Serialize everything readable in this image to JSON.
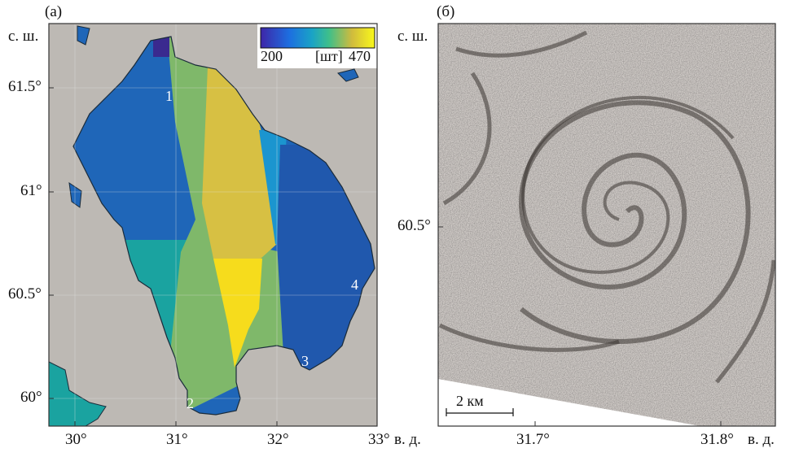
{
  "panel_a": {
    "label": "(a)",
    "lat_unit": "с. ш.",
    "lon_unit": "в. д.",
    "lat_ticks": [
      "61.5°",
      "61°",
      "60.5°",
      "60°"
    ],
    "lon_ticks": [
      "30°",
      "31°",
      "32°",
      "33°"
    ],
    "colorbar": {
      "min_label": "200",
      "unit": "[шт]",
      "max_label": "470",
      "min": 200,
      "max": 470,
      "colormap": "parula"
    },
    "point_labels": [
      "1",
      "2",
      "3",
      "4"
    ],
    "colors": {
      "land": "#bdb9b4",
      "dark_blue": "#1f66b8",
      "teal": "#1aa3a0",
      "green": "#7fb86a",
      "yellow_muted": "#d7c043",
      "yellow": "#f6dc1c",
      "light_blue": "#1b95cf"
    }
  },
  "panel_b": {
    "label": "(б)",
    "lat_unit": "с. ш.",
    "lon_unit": "в. д.",
    "lat_ticks": [
      "60.5°"
    ],
    "lon_ticks": [
      "31.7°",
      "31.8°"
    ],
    "scale_bar": "2 км"
  }
}
